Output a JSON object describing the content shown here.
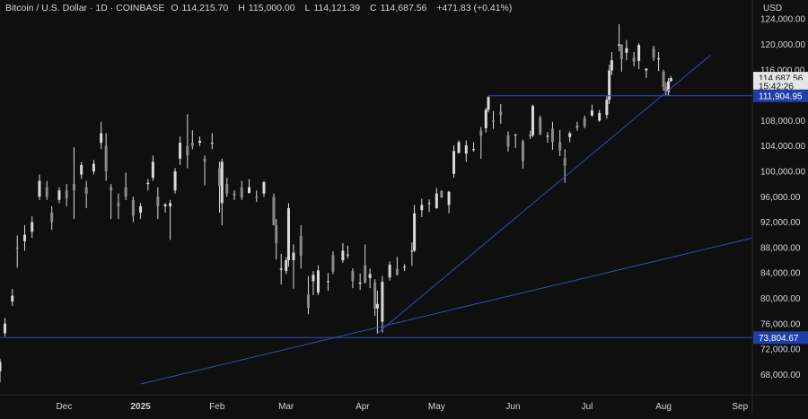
{
  "legend": {
    "title": "Bitcoin / U.S. Dollar · 1D · COINBASE",
    "open_label": "O",
    "open": "114,215.70",
    "high_label": "H",
    "high": "115,000.00",
    "low_label": "L",
    "low": "114,121.39",
    "close_label": "C",
    "close": "114,687.56",
    "change": "+471.83 (+0.41%)"
  },
  "currency": "USD",
  "colors": {
    "background": "#0f0f0f",
    "candle": "#d9d9d9",
    "line": "#2f4fb5",
    "label_bg": "#1e3fa8",
    "last_price_bg": "#e6e6e6"
  },
  "chart_data": {
    "type": "candlestick",
    "x_ticks": [
      {
        "label": "Dec",
        "date": "2024-12-01"
      },
      {
        "label": "2025",
        "date": "2025-01-01"
      },
      {
        "label": "Feb",
        "date": "2025-02-01"
      },
      {
        "label": "Mar",
        "date": "2025-03-01"
      },
      {
        "label": "Apr",
        "date": "2025-04-01"
      },
      {
        "label": "May",
        "date": "2025-05-01"
      },
      {
        "label": "Jun",
        "date": "2025-06-01"
      },
      {
        "label": "Jul",
        "date": "2025-07-01"
      },
      {
        "label": "Aug",
        "date": "2025-08-01"
      },
      {
        "label": "Sep",
        "date": "2025-09-01"
      }
    ],
    "y_ticks": [
      {
        "label": "124,000.00",
        "value": 124000
      },
      {
        "label": "120,000.00",
        "value": 120000
      },
      {
        "label": "116,000.00",
        "value": 116000
      },
      {
        "label": "108,000.00",
        "value": 108000
      },
      {
        "label": "104,000.00",
        "value": 104000
      },
      {
        "label": "100,000.00",
        "value": 100000
      },
      {
        "label": "96,000.00",
        "value": 96000
      },
      {
        "label": "92,000.00",
        "value": 92000
      },
      {
        "label": "88,000.00",
        "value": 88000
      },
      {
        "label": "84,000.00",
        "value": 84000
      },
      {
        "label": "80,000.00",
        "value": 80000
      },
      {
        "label": "76,000.00",
        "value": 76000
      },
      {
        "label": "72,000.00",
        "value": 72000
      },
      {
        "label": "68,000.00",
        "value": 68000
      }
    ],
    "x_range": [
      "2024-11-05",
      "2025-09-06"
    ],
    "y_range": [
      64800,
      127000
    ],
    "price_labels": [
      {
        "label": "114,687.56",
        "value": 114687.56,
        "style": "last"
      },
      {
        "label": "15:42:26",
        "value": 113400,
        "style": "countdown"
      },
      {
        "label": "111,904.95",
        "value": 111904.95,
        "style": "line"
      },
      {
        "label": "73,804.67",
        "value": 73804.67,
        "style": "line"
      }
    ],
    "horizontal_lines": [
      {
        "value": 111904.95,
        "from": "2025-05-22"
      },
      {
        "value": 73804.67,
        "from": "2024-11-05"
      }
    ],
    "trendlines": [
      {
        "from": {
          "date": "2025-04-07",
          "value": 74500
        },
        "to": {
          "date": "2025-08-20",
          "value": 118300
        }
      },
      {
        "from": {
          "date": "2025-01-01",
          "value": 66500
        },
        "to": {
          "date": "2025-09-06",
          "value": 89500
        }
      }
    ],
    "candles": [
      {
        "d": "2024-11-05",
        "o": 68500,
        "h": 70500,
        "l": 66800,
        "c": 70000
      },
      {
        "d": "2024-11-07",
        "o": 74500,
        "h": 76900,
        "l": 74000,
        "c": 76000
      },
      {
        "d": "2024-11-10",
        "o": 79500,
        "h": 81500,
        "l": 78800,
        "c": 80400
      },
      {
        "d": "2024-11-12",
        "o": 88000,
        "h": 89900,
        "l": 84800,
        "c": 87800
      },
      {
        "d": "2024-11-15",
        "o": 89000,
        "h": 91500,
        "l": 87500,
        "c": 90000
      },
      {
        "d": "2024-11-18",
        "o": 90500,
        "h": 92900,
        "l": 89500,
        "c": 92000
      },
      {
        "d": "2024-11-21",
        "o": 96000,
        "h": 99500,
        "l": 95500,
        "c": 98500
      },
      {
        "d": "2024-11-24",
        "o": 97500,
        "h": 98500,
        "l": 95500,
        "c": 96000
      },
      {
        "d": "2024-11-26",
        "o": 93500,
        "h": 94500,
        "l": 90800,
        "c": 92000
      },
      {
        "d": "2024-11-29",
        "o": 95500,
        "h": 97500,
        "l": 95000,
        "c": 97000
      },
      {
        "d": "2024-12-02",
        "o": 97000,
        "h": 98000,
        "l": 94500,
        "c": 95800
      },
      {
        "d": "2024-12-05",
        "o": 98000,
        "h": 103800,
        "l": 92500,
        "c": 97000
      },
      {
        "d": "2024-12-08",
        "o": 99500,
        "h": 101500,
        "l": 98800,
        "c": 101000
      },
      {
        "d": "2024-12-10",
        "o": 97500,
        "h": 98500,
        "l": 94200,
        "c": 96500
      },
      {
        "d": "2024-12-13",
        "o": 100000,
        "h": 101800,
        "l": 99500,
        "c": 101200
      },
      {
        "d": "2024-12-16",
        "o": 104500,
        "h": 107800,
        "l": 103500,
        "c": 106000
      },
      {
        "d": "2024-12-18",
        "o": 104000,
        "h": 106000,
        "l": 98500,
        "c": 100000
      },
      {
        "d": "2024-12-20",
        "o": 97500,
        "h": 98000,
        "l": 92500,
        "c": 97000
      },
      {
        "d": "2024-12-23",
        "o": 95000,
        "h": 96500,
        "l": 92500,
        "c": 94500
      },
      {
        "d": "2024-12-26",
        "o": 97500,
        "h": 99800,
        "l": 95500,
        "c": 96000
      },
      {
        "d": "2024-12-29",
        "o": 95500,
        "h": 96000,
        "l": 92000,
        "c": 93000
      },
      {
        "d": "2025-01-01",
        "o": 93500,
        "h": 95000,
        "l": 92500,
        "c": 94500
      },
      {
        "d": "2025-01-04",
        "o": 98000,
        "h": 98800,
        "l": 97000,
        "c": 98200
      },
      {
        "d": "2025-01-06",
        "o": 99000,
        "h": 102500,
        "l": 98500,
        "c": 101500
      },
      {
        "d": "2025-01-08",
        "o": 96000,
        "h": 97500,
        "l": 92500,
        "c": 94500
      },
      {
        "d": "2025-01-11",
        "o": 94500,
        "h": 95000,
        "l": 93500,
        "c": 94800
      },
      {
        "d": "2025-01-13",
        "o": 94500,
        "h": 95500,
        "l": 89200,
        "c": 95000
      },
      {
        "d": "2025-01-15",
        "o": 97000,
        "h": 100500,
        "l": 96500,
        "c": 100000
      },
      {
        "d": "2025-01-17",
        "o": 102000,
        "h": 105500,
        "l": 101000,
        "c": 104500
      },
      {
        "d": "2025-01-20",
        "o": 104000,
        "h": 109000,
        "l": 100500,
        "c": 102500
      },
      {
        "d": "2025-01-22",
        "o": 104500,
        "h": 106500,
        "l": 103500,
        "c": 104000
      },
      {
        "d": "2025-01-25",
        "o": 104500,
        "h": 105500,
        "l": 104000,
        "c": 104800
      },
      {
        "d": "2025-01-27",
        "o": 102000,
        "h": 102500,
        "l": 97800,
        "c": 101500
      },
      {
        "d": "2025-01-30",
        "o": 104500,
        "h": 106000,
        "l": 103500,
        "c": 104500
      },
      {
        "d": "2025-02-02",
        "o": 100500,
        "h": 101500,
        "l": 93500,
        "c": 97700
      },
      {
        "d": "2025-02-03",
        "o": 95000,
        "h": 102000,
        "l": 91500,
        "c": 101500
      },
      {
        "d": "2025-02-05",
        "o": 98000,
        "h": 99000,
        "l": 96000,
        "c": 96500
      },
      {
        "d": "2025-02-08",
        "o": 96500,
        "h": 97000,
        "l": 95500,
        "c": 96200
      },
      {
        "d": "2025-02-11",
        "o": 97500,
        "h": 98500,
        "l": 95500,
        "c": 95900
      },
      {
        "d": "2025-02-14",
        "o": 96600,
        "h": 98800,
        "l": 96500,
        "c": 97500
      },
      {
        "d": "2025-02-17",
        "o": 96000,
        "h": 97000,
        "l": 95200,
        "c": 95800
      },
      {
        "d": "2025-02-20",
        "o": 96500,
        "h": 98500,
        "l": 96000,
        "c": 98300
      },
      {
        "d": "2025-02-24",
        "o": 96000,
        "h": 96500,
        "l": 91500,
        "c": 91500
      },
      {
        "d": "2025-02-25",
        "o": 91500,
        "h": 92500,
        "l": 86100,
        "c": 88700
      },
      {
        "d": "2025-02-27",
        "o": 84500,
        "h": 87000,
        "l": 82200,
        "c": 84700
      },
      {
        "d": "2025-03-01",
        "o": 84300,
        "h": 86500,
        "l": 83800,
        "c": 86000
      },
      {
        "d": "2025-03-02",
        "o": 86000,
        "h": 95000,
        "l": 85000,
        "c": 94200
      },
      {
        "d": "2025-03-04",
        "o": 86000,
        "h": 88500,
        "l": 81500,
        "c": 87200
      },
      {
        "d": "2025-03-07",
        "o": 89800,
        "h": 91500,
        "l": 84700,
        "c": 86700
      },
      {
        "d": "2025-03-10",
        "o": 80600,
        "h": 83500,
        "l": 77500,
        "c": 78500
      },
      {
        "d": "2025-03-12",
        "o": 82700,
        "h": 84300,
        "l": 80500,
        "c": 83700
      },
      {
        "d": "2025-03-14",
        "o": 80900,
        "h": 85200,
        "l": 80500,
        "c": 84400
      },
      {
        "d": "2025-03-18",
        "o": 82600,
        "h": 84000,
        "l": 81200,
        "c": 82700
      },
      {
        "d": "2025-03-20",
        "o": 86800,
        "h": 87400,
        "l": 83800,
        "c": 84200
      },
      {
        "d": "2025-03-24",
        "o": 86000,
        "h": 88700,
        "l": 85600,
        "c": 87500
      },
      {
        "d": "2025-03-26",
        "o": 86900,
        "h": 88300,
        "l": 86300,
        "c": 86900
      },
      {
        "d": "2025-03-28",
        "o": 84300,
        "h": 84700,
        "l": 81600,
        "c": 82700
      },
      {
        "d": "2025-03-31",
        "o": 82300,
        "h": 83900,
        "l": 81300,
        "c": 82500
      },
      {
        "d": "2025-04-02",
        "o": 85200,
        "h": 88500,
        "l": 82300,
        "c": 82500
      },
      {
        "d": "2025-04-04",
        "o": 83200,
        "h": 84700,
        "l": 81600,
        "c": 83800
      },
      {
        "d": "2025-04-06",
        "o": 82500,
        "h": 83000,
        "l": 77200,
        "c": 78400
      },
      {
        "d": "2025-04-07",
        "o": 78400,
        "h": 81200,
        "l": 74400,
        "c": 79100
      },
      {
        "d": "2025-04-09",
        "o": 76300,
        "h": 83500,
        "l": 74600,
        "c": 82600
      },
      {
        "d": "2025-04-12",
        "o": 83300,
        "h": 85800,
        "l": 82800,
        "c": 85300
      },
      {
        "d": "2025-04-15",
        "o": 84600,
        "h": 86500,
        "l": 83600,
        "c": 83700
      },
      {
        "d": "2025-04-18",
        "o": 84900,
        "h": 85400,
        "l": 84300,
        "c": 85000
      },
      {
        "d": "2025-04-21",
        "o": 87500,
        "h": 88800,
        "l": 85100,
        "c": 87500
      },
      {
        "d": "2025-04-22",
        "o": 87500,
        "h": 94700,
        "l": 87300,
        "c": 93400
      },
      {
        "d": "2025-04-25",
        "o": 93900,
        "h": 95700,
        "l": 92800,
        "c": 94700
      },
      {
        "d": "2025-04-28",
        "o": 95000,
        "h": 95600,
        "l": 93600,
        "c": 95000
      },
      {
        "d": "2025-05-01",
        "o": 94200,
        "h": 97400,
        "l": 94100,
        "c": 96500
      },
      {
        "d": "2025-05-03",
        "o": 96900,
        "h": 97000,
        "l": 95800,
        "c": 95900
      },
      {
        "d": "2025-05-06",
        "o": 94700,
        "h": 96900,
        "l": 93400,
        "c": 96800
      },
      {
        "d": "2025-05-08",
        "o": 99600,
        "h": 104100,
        "l": 99000,
        "c": 103200
      },
      {
        "d": "2025-05-10",
        "o": 102900,
        "h": 104900,
        "l": 102800,
        "c": 104600
      },
      {
        "d": "2025-05-13",
        "o": 102800,
        "h": 104900,
        "l": 101500,
        "c": 104100
      },
      {
        "d": "2025-05-16",
        "o": 103500,
        "h": 104600,
        "l": 103100,
        "c": 103500
      },
      {
        "d": "2025-05-19",
        "o": 106400,
        "h": 107000,
        "l": 102000,
        "c": 105600
      },
      {
        "d": "2025-05-21",
        "o": 106800,
        "h": 110000,
        "l": 106100,
        "c": 109700
      },
      {
        "d": "2025-05-22",
        "o": 109700,
        "h": 111900,
        "l": 109300,
        "c": 111700
      },
      {
        "d": "2025-05-24",
        "o": 108000,
        "h": 109500,
        "l": 106700,
        "c": 107800
      },
      {
        "d": "2025-05-27",
        "o": 109400,
        "h": 110600,
        "l": 107500,
        "c": 108900
      },
      {
        "d": "2025-05-30",
        "o": 105700,
        "h": 106300,
        "l": 103100,
        "c": 103900
      },
      {
        "d": "2025-06-02",
        "o": 105700,
        "h": 105900,
        "l": 103700,
        "c": 105800
      },
      {
        "d": "2025-06-05",
        "o": 104700,
        "h": 105000,
        "l": 100400,
        "c": 101600
      },
      {
        "d": "2025-06-08",
        "o": 105600,
        "h": 106400,
        "l": 105100,
        "c": 105700
      },
      {
        "d": "2025-06-09",
        "o": 105700,
        "h": 110500,
        "l": 105400,
        "c": 110300
      },
      {
        "d": "2025-06-12",
        "o": 108500,
        "h": 108800,
        "l": 105700,
        "c": 105800
      },
      {
        "d": "2025-06-15",
        "o": 105500,
        "h": 106200,
        "l": 104500,
        "c": 105600
      },
      {
        "d": "2025-06-17",
        "o": 106700,
        "h": 107800,
        "l": 103400,
        "c": 104600
      },
      {
        "d": "2025-06-20",
        "o": 104600,
        "h": 106500,
        "l": 102400,
        "c": 103300
      },
      {
        "d": "2025-06-22",
        "o": 102100,
        "h": 103500,
        "l": 98200,
        "c": 100900
      },
      {
        "d": "2025-06-24",
        "o": 105400,
        "h": 106300,
        "l": 104600,
        "c": 106000
      },
      {
        "d": "2025-06-27",
        "o": 107000,
        "h": 107800,
        "l": 106400,
        "c": 107100
      },
      {
        "d": "2025-06-30",
        "o": 108400,
        "h": 108800,
        "l": 106800,
        "c": 107100
      },
      {
        "d": "2025-07-03",
        "o": 108800,
        "h": 110500,
        "l": 108600,
        "c": 109600
      },
      {
        "d": "2025-07-06",
        "o": 108000,
        "h": 109700,
        "l": 107800,
        "c": 109200
      },
      {
        "d": "2025-07-09",
        "o": 108900,
        "h": 111900,
        "l": 108300,
        "c": 111300
      },
      {
        "d": "2025-07-10",
        "o": 111300,
        "h": 116800,
        "l": 110600,
        "c": 115900
      },
      {
        "d": "2025-07-11",
        "o": 115900,
        "h": 118800,
        "l": 115200,
        "c": 117500
      },
      {
        "d": "2025-07-14",
        "o": 119800,
        "h": 123200,
        "l": 118900,
        "c": 120000
      },
      {
        "d": "2025-07-15",
        "o": 120000,
        "h": 120000,
        "l": 115700,
        "c": 117700
      },
      {
        "d": "2025-07-17",
        "o": 118700,
        "h": 120700,
        "l": 117500,
        "c": 119400
      },
      {
        "d": "2025-07-20",
        "o": 117900,
        "h": 118800,
        "l": 116500,
        "c": 117300
      },
      {
        "d": "2025-07-22",
        "o": 117400,
        "h": 120200,
        "l": 116100,
        "c": 119900
      },
      {
        "d": "2025-07-25",
        "o": 115900,
        "h": 116100,
        "l": 114700,
        "c": 116200
      },
      {
        "d": "2025-07-28",
        "o": 119400,
        "h": 119800,
        "l": 117400,
        "c": 117900
      },
      {
        "d": "2025-07-30",
        "o": 117800,
        "h": 118800,
        "l": 115800,
        "c": 117800
      },
      {
        "d": "2025-08-01",
        "o": 115700,
        "h": 116000,
        "l": 112700,
        "c": 113300
      },
      {
        "d": "2025-08-02",
        "o": 113300,
        "h": 114000,
        "l": 112000,
        "c": 112500
      },
      {
        "d": "2025-08-03",
        "o": 112500,
        "h": 114700,
        "l": 111900,
        "c": 114200
      },
      {
        "d": "2025-08-04",
        "o": 114215.7,
        "h": 115000,
        "l": 114121.39,
        "c": 114687.56
      }
    ]
  }
}
